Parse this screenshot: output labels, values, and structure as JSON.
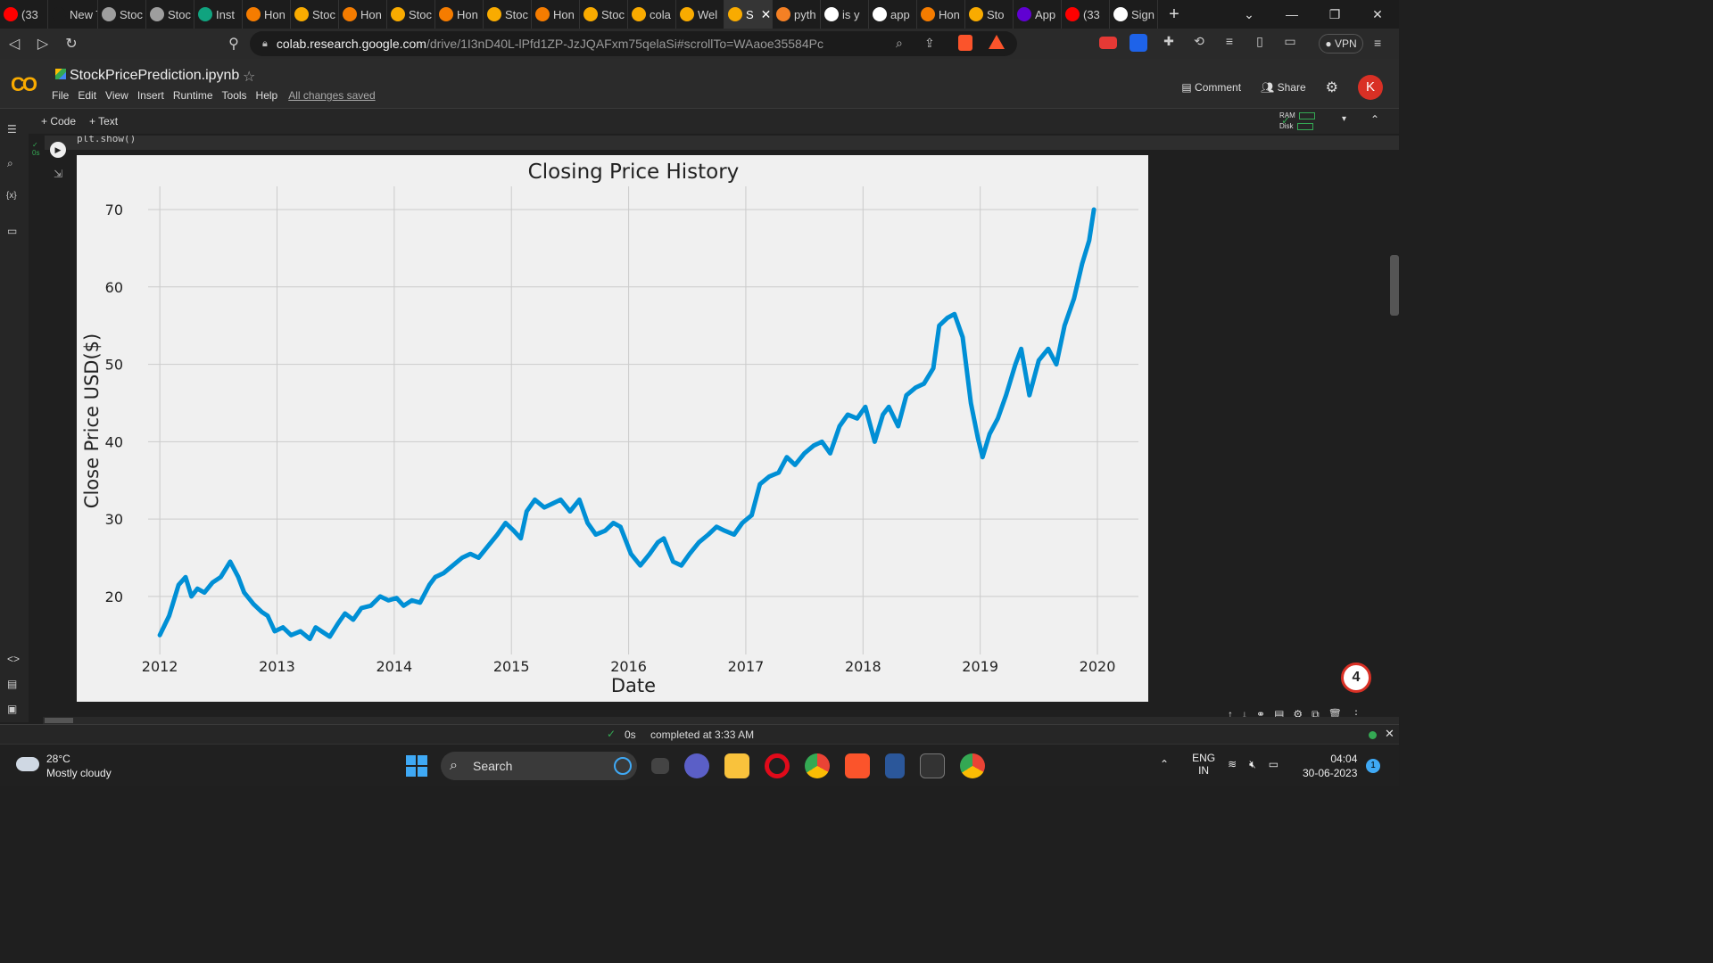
{
  "browser": {
    "tabs": [
      {
        "label": "(33",
        "color": "#ff0000"
      },
      {
        "label": "New Tab",
        "color": "#1c1c1c"
      },
      {
        "label": "Stoc",
        "color": "#9e9e9e"
      },
      {
        "label": "Stoc",
        "color": "#9e9e9e"
      },
      {
        "label": "Inst",
        "color": "#10a37f"
      },
      {
        "label": "Hon",
        "color": "#f57c00"
      },
      {
        "label": "Stoc",
        "color": "#f9ab00"
      },
      {
        "label": "Hon",
        "color": "#f57c00"
      },
      {
        "label": "Stoc",
        "color": "#f9ab00"
      },
      {
        "label": "Hon",
        "color": "#f57c00"
      },
      {
        "label": "Stoc",
        "color": "#f9ab00"
      },
      {
        "label": "Hon",
        "color": "#f57c00"
      },
      {
        "label": "Stoc",
        "color": "#f9ab00"
      },
      {
        "label": "cola",
        "color": "#f9ab00"
      },
      {
        "label": "Wel",
        "color": "#f9ab00"
      },
      {
        "label": "S",
        "color": "#f9ab00",
        "active": true
      },
      {
        "label": "pyth",
        "color": "#f48024"
      },
      {
        "label": "is y",
        "color": "#ffffff"
      },
      {
        "label": "app",
        "color": "#ffffff"
      },
      {
        "label": "Hon",
        "color": "#f57c00"
      },
      {
        "label": "Sto",
        "color": "#f9ab00"
      },
      {
        "label": "App",
        "color": "#6001d2"
      },
      {
        "label": "(33",
        "color": "#ff0000"
      },
      {
        "label": "Sign",
        "color": "#ffffff"
      }
    ],
    "url_host": "colab.research.google.com",
    "url_path": "/drive/1I3nD40L-lPfd1ZP-JzJQAFxm75qelaSi#scrollTo=WAaoe35584Pc",
    "vpn_label": "VPN"
  },
  "colab": {
    "notebook_title": "StockPricePrediction.ipynb",
    "menu": [
      "File",
      "Edit",
      "View",
      "Insert",
      "Runtime",
      "Tools",
      "Help"
    ],
    "saved_status": "All changes saved",
    "comment_label": "Comment",
    "share_label": "Share",
    "avatar_letter": "K",
    "add_code": "+ Code",
    "add_text": "+ Text",
    "ram_label": "RAM",
    "disk_label": "Disk",
    "code_snippet": "plt.show()",
    "exec_time": "0s",
    "badge_count": "4",
    "status_time": "0s",
    "status_text": "completed at 3:33 AM"
  },
  "chart_data": {
    "type": "line",
    "title": "Closing Price History",
    "xlabel": "Date",
    "ylabel": "Close Price USD($)",
    "x_ticks": [
      "2012",
      "2013",
      "2014",
      "2015",
      "2016",
      "2017",
      "2018",
      "2019",
      "2020"
    ],
    "y_ticks": [
      20,
      30,
      40,
      50,
      60,
      70
    ],
    "xlim": [
      2011.9,
      2020.35
    ],
    "ylim": [
      12.5,
      73
    ],
    "grid": true,
    "color": "#008fd5",
    "series": [
      {
        "name": "",
        "x": [
          2012.0,
          2012.08,
          2012.16,
          2012.22,
          2012.27,
          2012.32,
          2012.38,
          2012.45,
          2012.52,
          2012.6,
          2012.67,
          2012.72,
          2012.8,
          2012.87,
          2012.92,
          2012.98,
          2013.05,
          2013.12,
          2013.2,
          2013.28,
          2013.33,
          2013.38,
          2013.45,
          2013.52,
          2013.58,
          2013.65,
          2013.72,
          2013.8,
          2013.88,
          2013.95,
          2014.02,
          2014.08,
          2014.15,
          2014.22,
          2014.3,
          2014.35,
          2014.42,
          2014.5,
          2014.58,
          2014.65,
          2014.72,
          2014.8,
          2014.88,
          2014.95,
          2015.02,
          2015.08,
          2015.13,
          2015.2,
          2015.28,
          2015.35,
          2015.42,
          2015.5,
          2015.58,
          2015.65,
          2015.72,
          2015.8,
          2015.87,
          2015.93,
          2016.02,
          2016.1,
          2016.18,
          2016.25,
          2016.3,
          2016.38,
          2016.45,
          2016.52,
          2016.6,
          2016.68,
          2016.75,
          2016.82,
          2016.9,
          2016.97,
          2017.05,
          2017.12,
          2017.2,
          2017.28,
          2017.35,
          2017.42,
          2017.5,
          2017.58,
          2017.65,
          2017.72,
          2017.8,
          2017.87,
          2017.95,
          2018.02,
          2018.1,
          2018.17,
          2018.22,
          2018.3,
          2018.37,
          2018.45,
          2018.52,
          2018.6,
          2018.65,
          2018.72,
          2018.78,
          2018.85,
          2018.92,
          2018.98,
          2019.02,
          2019.08,
          2019.15,
          2019.22,
          2019.3,
          2019.35,
          2019.42,
          2019.5,
          2019.58,
          2019.65,
          2019.72,
          2019.8,
          2019.87,
          2019.93,
          2019.97
        ],
        "y": [
          15.0,
          17.5,
          21.5,
          22.5,
          20.0,
          21.0,
          20.5,
          21.8,
          22.5,
          24.5,
          22.5,
          20.5,
          19.0,
          18.0,
          17.5,
          15.5,
          16.0,
          15.0,
          15.5,
          14.5,
          16.0,
          15.5,
          14.8,
          16.5,
          17.8,
          17.0,
          18.5,
          18.8,
          20.0,
          19.5,
          19.8,
          18.8,
          19.5,
          19.2,
          21.5,
          22.5,
          23.0,
          24.0,
          25.0,
          25.5,
          25.0,
          26.5,
          28.0,
          29.5,
          28.5,
          27.5,
          31.0,
          32.5,
          31.5,
          32.0,
          32.5,
          31.0,
          32.5,
          29.5,
          28.0,
          28.5,
          29.5,
          29.0,
          25.5,
          24.0,
          25.5,
          27.0,
          27.5,
          24.5,
          24.0,
          25.5,
          27.0,
          28.0,
          29.0,
          28.5,
          28.0,
          29.5,
          30.5,
          34.5,
          35.5,
          36.0,
          38.0,
          37.0,
          38.5,
          39.5,
          40.0,
          38.5,
          42.0,
          43.5,
          43.0,
          44.5,
          40.0,
          43.5,
          44.5,
          42.0,
          46.0,
          47.0,
          47.5,
          49.5,
          55.0,
          56.0,
          56.5,
          53.5,
          45.0,
          40.5,
          38.0,
          41.0,
          43.0,
          46.0,
          50.0,
          52.0,
          46.0,
          50.5,
          52.0,
          50.0,
          55.0,
          58.5,
          63.0,
          66.0,
          70.0
        ]
      }
    ]
  },
  "taskbar": {
    "temperature": "28°C",
    "weather": "Mostly cloudy",
    "search_label": "Search",
    "lang1": "ENG",
    "lang2": "IN",
    "time": "04:04",
    "date": "30-06-2023",
    "notif_count": "1"
  }
}
